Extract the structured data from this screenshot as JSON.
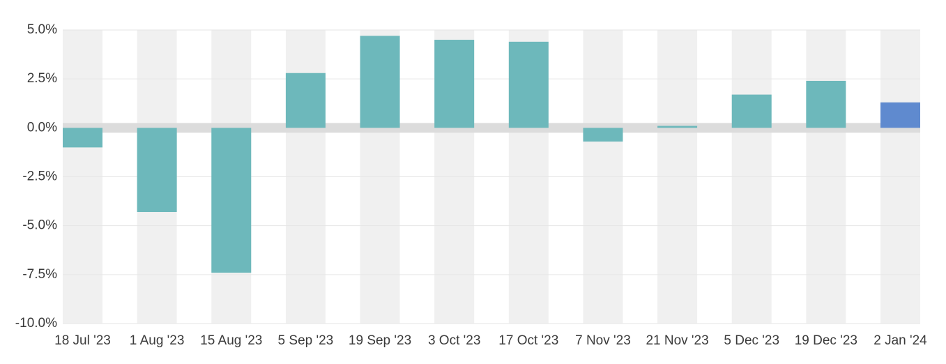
{
  "chart_data": {
    "type": "bar",
    "categories": [
      "18 Jul '23",
      "1 Aug '23",
      "15 Aug '23",
      "5 Sep '23",
      "19 Sep '23",
      "3 Oct '23",
      "17 Oct '23",
      "7 Nov '23",
      "21 Nov '23",
      "5 Dec '23",
      "19 Dec '23",
      "2 Jan '24"
    ],
    "values": [
      -1.0,
      -4.3,
      -7.4,
      2.8,
      4.7,
      4.5,
      4.4,
      -0.7,
      0.1,
      1.7,
      2.4,
      1.3
    ],
    "colors": [
      "#6db8bb",
      "#6db8bb",
      "#6db8bb",
      "#6db8bb",
      "#6db8bb",
      "#6db8bb",
      "#6db8bb",
      "#6db8bb",
      "#6db8bb",
      "#6db8bb",
      "#6db8bb",
      "#5f8acf"
    ],
    "ylim": [
      -10,
      5
    ],
    "yticks": [
      {
        "value": 5,
        "label": "5.0%"
      },
      {
        "value": 2.5,
        "label": "2.5%"
      },
      {
        "value": 0,
        "label": "0.0%"
      },
      {
        "value": -2.5,
        "label": "-2.5%"
      },
      {
        "value": -5,
        "label": "-5.0%"
      },
      {
        "value": -7.5,
        "label": "-7.5%"
      },
      {
        "value": -10,
        "label": "-10.0%"
      }
    ]
  }
}
